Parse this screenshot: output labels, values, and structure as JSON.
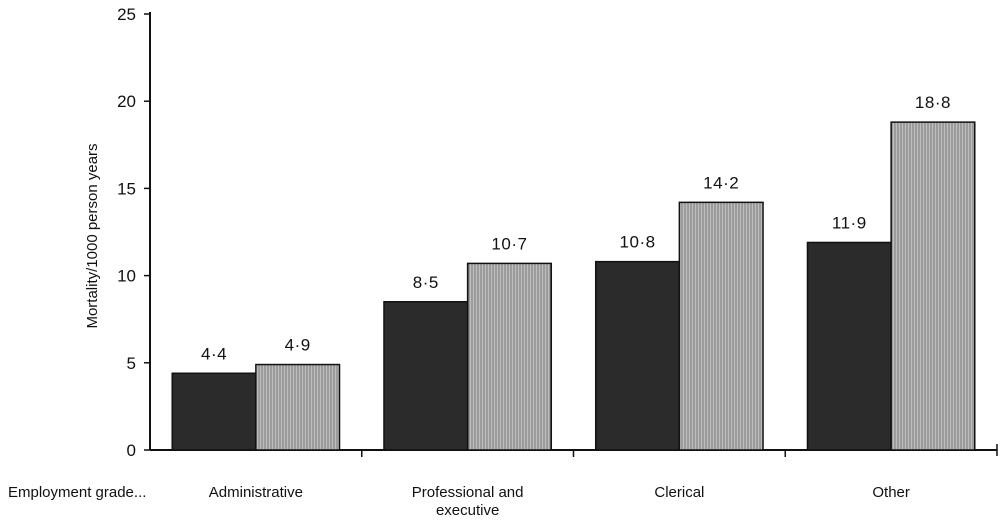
{
  "chart_data": {
    "type": "bar",
    "xlabel": "Employment grade...",
    "ylabel": "Mortality/1000 person years",
    "ylim": [
      0,
      25
    ],
    "yticks": [
      "0",
      "5",
      "10",
      "15",
      "20",
      "25"
    ],
    "grid": false,
    "legend": "none",
    "categories": [
      [
        "Administrative"
      ],
      [
        "Professional and",
        "executive"
      ],
      [
        "Clerical"
      ],
      [
        "Other"
      ]
    ],
    "series": [
      {
        "values": [
          4.4,
          8.5,
          10.8,
          11.9
        ],
        "labels": [
          "4·4",
          "8·5",
          "10·8",
          "11·9"
        ],
        "color": "#2b2b2b",
        "pattern": "solid-dark"
      },
      {
        "values": [
          4.9,
          10.7,
          14.2,
          18.8
        ],
        "labels": [
          "4·9",
          "10·7",
          "14·2",
          "18·8"
        ],
        "color": "#a9a9a9",
        "pattern": "vertical-hatch"
      }
    ]
  }
}
